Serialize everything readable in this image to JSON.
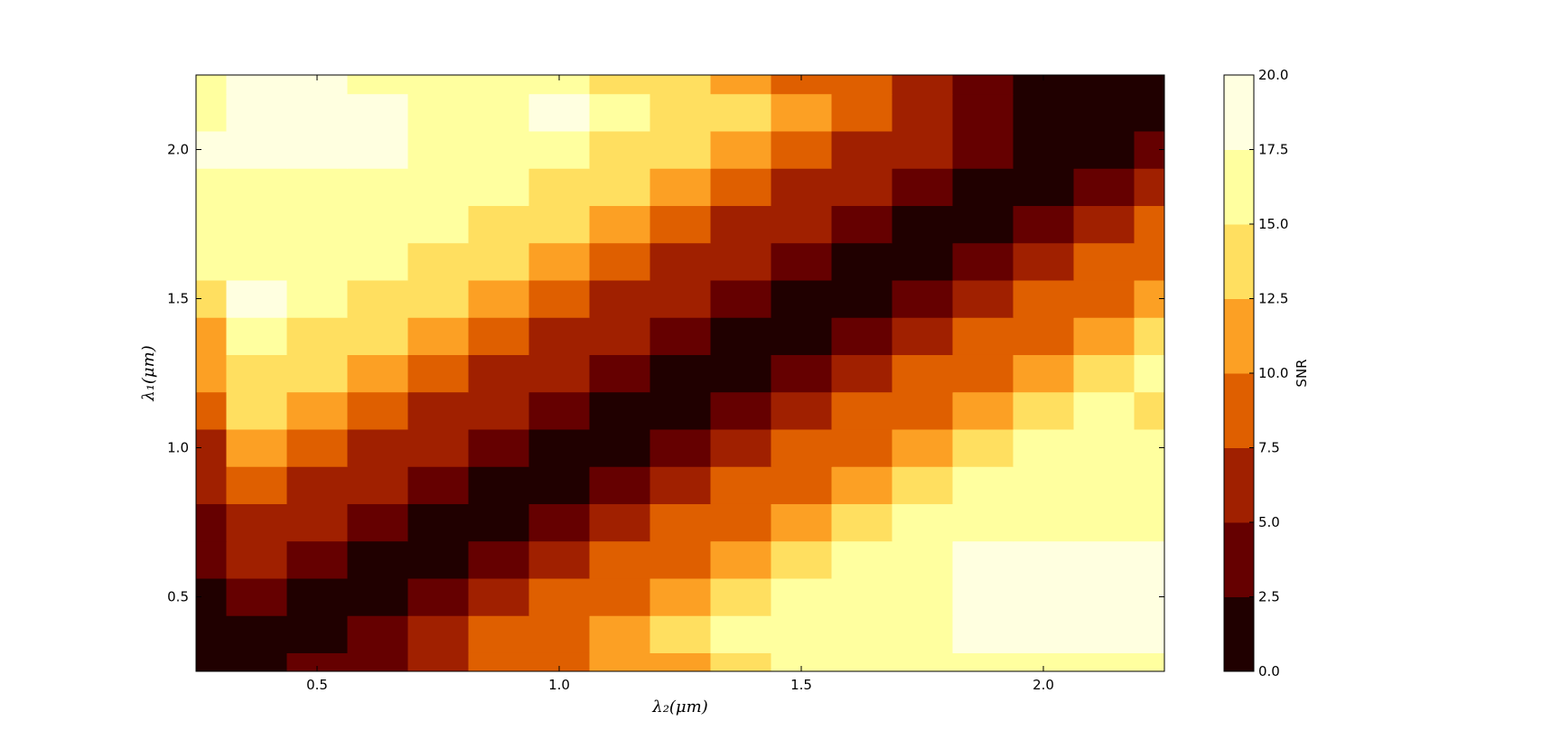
{
  "chart_data": {
    "type": "contourf",
    "xlabel": "λ₂(μm)",
    "ylabel": "λ₁(μm)",
    "x": [
      0.25,
      0.375,
      0.5,
      0.625,
      0.75,
      0.875,
      1.0,
      1.125,
      1.25,
      1.375,
      1.5,
      1.625,
      1.75,
      1.875,
      2.0,
      2.125,
      2.25
    ],
    "y": [
      0.25,
      0.375,
      0.5,
      0.625,
      0.75,
      0.875,
      1.0,
      1.125,
      1.25,
      1.375,
      1.5,
      1.625,
      1.75,
      1.875,
      2.0,
      2.125,
      2.25
    ],
    "z": [
      [
        1,
        1.3,
        3.0,
        4.6,
        6.2,
        7.8,
        9.3,
        10.8,
        12.2,
        13.7,
        15.1,
        15.2,
        15.2,
        15.2,
        15.2,
        15.2,
        15.2
      ],
      [
        1.5,
        1.1,
        1.6,
        3.8,
        5.8,
        7.8,
        9.7,
        11.6,
        13.5,
        15.3,
        17.1,
        17,
        17,
        18,
        19,
        19,
        19
      ],
      [
        2,
        3.3,
        1.1,
        1.6,
        3.8,
        5.8,
        7.8,
        9.7,
        11.6,
        13.5,
        15.3,
        17.1,
        17,
        18,
        19,
        19,
        19
      ],
      [
        3,
        5.4,
        3.3,
        1.1,
        1.6,
        3.8,
        5.8,
        7.8,
        9.7,
        11.6,
        13.5,
        15.3,
        17.1,
        18.5,
        19,
        19,
        19
      ],
      [
        4,
        7.4,
        5.4,
        3.3,
        1.1,
        1.6,
        3.8,
        5.8,
        7.8,
        9.7,
        11.6,
        13.5,
        15.3,
        17.1,
        17,
        17,
        17
      ],
      [
        5,
        9.3,
        7.4,
        5.4,
        3.3,
        1.1,
        1.6,
        3.8,
        5.8,
        7.8,
        9.7,
        11.6,
        13.5,
        15.3,
        17.1,
        17,
        16
      ],
      [
        6.5,
        11.2,
        9.3,
        7.4,
        5.4,
        3.3,
        1.1,
        1.6,
        3.8,
        5.8,
        7.8,
        9.7,
        11.6,
        13.5,
        15.3,
        16,
        15
      ],
      [
        8,
        13.1,
        11.2,
        9.3,
        7.4,
        5.4,
        3.3,
        1.1,
        1.6,
        3.8,
        5.8,
        7.8,
        9.7,
        11.6,
        13.5,
        15.3,
        14.5
      ],
      [
        10,
        14.9,
        13.1,
        11.2,
        9.3,
        7.4,
        5.4,
        3.3,
        1.1,
        1.6,
        3.8,
        5.8,
        7.8,
        9.7,
        11.6,
        13.5,
        15.3
      ],
      [
        12,
        16.7,
        14.9,
        13.1,
        11.2,
        9.3,
        7.4,
        5.4,
        3.3,
        1.1,
        1.6,
        3.8,
        5.8,
        7.8,
        9.7,
        11.6,
        13.5
      ],
      [
        13.5,
        18.5,
        16.7,
        14.9,
        13.1,
        11.2,
        9.3,
        7.4,
        5.4,
        3.3,
        1.1,
        1.6,
        3.8,
        5.8,
        7.8,
        9.7,
        11.6
      ],
      [
        15,
        17,
        16.5,
        16.7,
        14.9,
        13.1,
        11.2,
        9.3,
        7.4,
        5.4,
        3.3,
        1.1,
        1.6,
        3.8,
        5.8,
        7.8,
        9.7
      ],
      [
        16,
        17,
        17,
        16,
        16.7,
        14.9,
        13.1,
        11.2,
        9.3,
        7.4,
        5.4,
        3.3,
        1.1,
        1.6,
        3.8,
        5.8,
        7.8
      ],
      [
        17,
        17,
        17,
        17,
        16.5,
        16.7,
        14.9,
        13.1,
        11.2,
        9.3,
        7.4,
        5.4,
        3.3,
        1.1,
        1.6,
        3.8,
        5.8
      ],
      [
        18,
        19,
        19,
        19,
        17,
        16,
        16.7,
        14.9,
        13.1,
        11.2,
        9.3,
        7.4,
        5.4,
        3.3,
        1.1,
        1.6,
        3.8
      ],
      [
        17,
        19,
        19,
        19,
        17,
        16.5,
        18.5,
        16.7,
        14.9,
        13.1,
        11.2,
        9.3,
        7.4,
        3.5,
        1.5,
        1.1,
        1.6
      ],
      [
        16,
        19,
        19,
        17,
        16.5,
        16,
        15.5,
        14,
        12.6,
        11,
        9.5,
        7.6,
        5.5,
        4,
        2,
        1.5,
        1.1
      ]
    ],
    "colors": [
      "#200000",
      "#650000",
      "#a02000",
      "#df5f00",
      "#fca024",
      "#ffdf60",
      "#ffff9f",
      "#ffffe0"
    ],
    "xlim": [
      0.25,
      2.25
    ],
    "ylim": [
      0.25,
      2.25
    ],
    "xticks": [
      0.5,
      {
        "value": 1,
        "label": "1.0"
      },
      1.5,
      {
        "value": 2,
        "label": "2.0"
      }
    ],
    "yticks": [
      0.5,
      {
        "value": 1,
        "label": "1.0"
      },
      1.5,
      {
        "value": 2,
        "label": "2.0"
      }
    ],
    "colorbar": {
      "label": "SNR",
      "ticks": [
        {
          "value": 0,
          "label": "0.0"
        },
        2.5,
        {
          "value": 5,
          "label": "5.0"
        },
        7.5,
        {
          "value": 10,
          "label": "10.0"
        },
        12.5,
        {
          "value": 15,
          "label": "15.0"
        },
        17.5,
        {
          "value": 20,
          "label": "20.0"
        }
      ]
    }
  }
}
